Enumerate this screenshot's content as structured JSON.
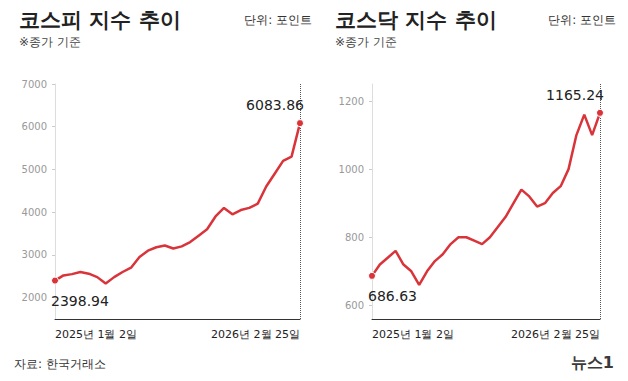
{
  "chart_data": [
    {
      "type": "line",
      "title": "코스피 지수 추이",
      "subtitle": "※종가 기준",
      "unit": "단위: 포인트",
      "color": "#d9343a",
      "grid": false,
      "categories": [
        "2025년 1월 2일",
        null,
        null,
        null,
        null,
        null,
        null,
        null,
        null,
        null,
        null,
        null,
        null,
        null,
        null,
        null,
        null,
        null,
        null,
        null,
        null,
        null,
        null,
        null,
        null,
        null,
        null,
        null,
        null,
        "2026년 2월 25일"
      ],
      "values": [
        2398.94,
        2520,
        2550,
        2600,
        2560,
        2480,
        2330,
        2480,
        2600,
        2700,
        2950,
        3100,
        3180,
        3220,
        3150,
        3200,
        3300,
        3450,
        3600,
        3900,
        4100,
        3950,
        4050,
        4100,
        4200,
        4600,
        4900,
        5200,
        5300,
        6083.86
      ],
      "ylim": [
        1500,
        7000
      ],
      "yticks": [
        2000,
        3000,
        4000,
        5000,
        6000,
        7000
      ],
      "annotations": [
        {
          "x": "2025년 1월 2일",
          "y": 2398.94,
          "text": "2398.94"
        },
        {
          "x": "2026년 2월 25일",
          "y": 6083.86,
          "text": "6083.86"
        }
      ]
    },
    {
      "type": "line",
      "title": "코스닥 지수 추이",
      "subtitle": "※종가 기준",
      "unit": "단위: 포인트",
      "color": "#d9343a",
      "grid": false,
      "categories": [
        "2025년 1월 2일",
        null,
        null,
        null,
        null,
        null,
        null,
        null,
        null,
        null,
        null,
        null,
        null,
        null,
        null,
        null,
        null,
        null,
        null,
        null,
        null,
        null,
        null,
        null,
        null,
        null,
        null,
        null,
        null,
        "2026년 2월 25일"
      ],
      "values": [
        686.63,
        720,
        740,
        760,
        720,
        700,
        660,
        700,
        730,
        750,
        780,
        800,
        800,
        790,
        780,
        800,
        830,
        860,
        900,
        940,
        920,
        890,
        900,
        930,
        950,
        1000,
        1100,
        1160,
        1100,
        1165.24
      ],
      "ylim": [
        560,
        1250
      ],
      "yticks": [
        600,
        800,
        1000,
        1200
      ],
      "annotations": [
        {
          "x": "2025년 1월 2일",
          "y": 686.63,
          "text": "686.63"
        },
        {
          "x": "2026년 2월 25일",
          "y": 1165.24,
          "text": "1165.24"
        }
      ]
    }
  ],
  "source": "자료: 한국거래소",
  "logo": "뉴스1"
}
